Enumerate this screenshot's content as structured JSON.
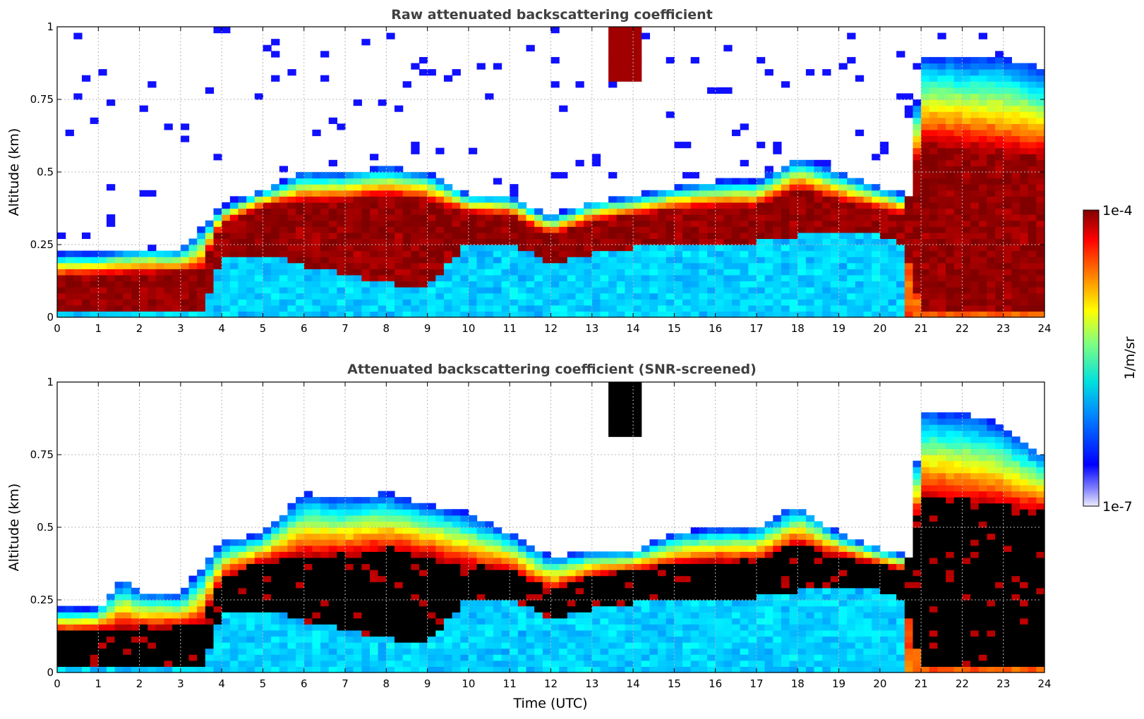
{
  "chart_data": [
    {
      "type": "heatmap",
      "title": "Raw attenuated backscattering coefficient",
      "xlabel": "",
      "ylabel": "Altitude (km)",
      "xlim": [
        0,
        24
      ],
      "ylim": [
        0,
        1
      ],
      "xticks": [
        0,
        1,
        2,
        3,
        4,
        5,
        6,
        7,
        8,
        9,
        10,
        11,
        12,
        13,
        14,
        15,
        16,
        17,
        18,
        19,
        20,
        21,
        22,
        23,
        24
      ],
      "yticks": [
        0,
        0.25,
        0.5,
        0.75,
        1
      ],
      "ytick_labels": [
        "0",
        "0.25",
        "0.5",
        "0.75",
        "1"
      ],
      "layer_top_km": [
        [
          0,
          0.22
        ],
        [
          1,
          0.22
        ],
        [
          2,
          0.24
        ],
        [
          3,
          0.23
        ],
        [
          4,
          0.38
        ],
        [
          5,
          0.44
        ],
        [
          6,
          0.5
        ],
        [
          7,
          0.5
        ],
        [
          8,
          0.52
        ],
        [
          9,
          0.5
        ],
        [
          10,
          0.42
        ],
        [
          11,
          0.42
        ],
        [
          12,
          0.35
        ],
        [
          13,
          0.4
        ],
        [
          14,
          0.42
        ],
        [
          15,
          0.45
        ],
        [
          16,
          0.47
        ],
        [
          17,
          0.47
        ],
        [
          18,
          0.55
        ],
        [
          19,
          0.5
        ],
        [
          20,
          0.45
        ],
        [
          20.7,
          0.42
        ],
        [
          21,
          0.9
        ],
        [
          22,
          0.9
        ],
        [
          23,
          0.9
        ],
        [
          24,
          0.85
        ]
      ],
      "cloud_base_km": [
        [
          0,
          0.02
        ],
        [
          3.5,
          0.02
        ],
        [
          4,
          0.2
        ],
        [
          5,
          0.22
        ],
        [
          6,
          0.18
        ],
        [
          7,
          0.15
        ],
        [
          8,
          0.12
        ],
        [
          9,
          0.1
        ],
        [
          10,
          0.26
        ],
        [
          11,
          0.26
        ],
        [
          12,
          0.18
        ],
        [
          13,
          0.22
        ],
        [
          14,
          0.24
        ],
        [
          15,
          0.26
        ],
        [
          16,
          0.26
        ],
        [
          17,
          0.26
        ],
        [
          18,
          0.28
        ],
        [
          19,
          0.3
        ],
        [
          20,
          0.28
        ],
        [
          20.6,
          0.25
        ],
        [
          21,
          0.03
        ],
        [
          24,
          0.03
        ]
      ],
      "cloud_top_km": [
        [
          0,
          0.14
        ],
        [
          3.5,
          0.16
        ],
        [
          4,
          0.32
        ],
        [
          5,
          0.38
        ],
        [
          6,
          0.4
        ],
        [
          7,
          0.4
        ],
        [
          8,
          0.42
        ],
        [
          9,
          0.4
        ],
        [
          10,
          0.36
        ],
        [
          11,
          0.35
        ],
        [
          12,
          0.28
        ],
        [
          13,
          0.33
        ],
        [
          14,
          0.35
        ],
        [
          15,
          0.37
        ],
        [
          16,
          0.38
        ],
        [
          17,
          0.38
        ],
        [
          18,
          0.44
        ],
        [
          19,
          0.4
        ],
        [
          20,
          0.37
        ],
        [
          20.6,
          0.35
        ],
        [
          21,
          0.6
        ],
        [
          24,
          0.55
        ]
      ],
      "upper_cloud": {
        "x_start": 13.5,
        "x_end": 14.2,
        "y_bottom_km": 0.82,
        "y_top_km": 1.0
      },
      "screened": false
    },
    {
      "type": "heatmap",
      "title": "Attenuated backscattering coefficient (SNR-screened)",
      "xlabel": "Time (UTC)",
      "ylabel": "Altitude (km)",
      "xlim": [
        0,
        24
      ],
      "ylim": [
        0,
        1
      ],
      "xticks": [
        0,
        1,
        2,
        3,
        4,
        5,
        6,
        7,
        8,
        9,
        10,
        11,
        12,
        13,
        14,
        15,
        16,
        17,
        18,
        19,
        20,
        21,
        22,
        23,
        24
      ],
      "yticks": [
        0,
        0.25,
        0.5,
        0.75,
        1
      ],
      "ytick_labels": [
        "0",
        "0.25",
        "0.5",
        "0.75",
        "1"
      ],
      "layer_top_km": [
        [
          0,
          0.22
        ],
        [
          1,
          0.22
        ],
        [
          1.6,
          0.33
        ],
        [
          2,
          0.28
        ],
        [
          3,
          0.27
        ],
        [
          4,
          0.45
        ],
        [
          5,
          0.48
        ],
        [
          6,
          0.62
        ],
        [
          7,
          0.6
        ],
        [
          8,
          0.62
        ],
        [
          9,
          0.58
        ],
        [
          10,
          0.55
        ],
        [
          11,
          0.48
        ],
        [
          12,
          0.4
        ],
        [
          13,
          0.42
        ],
        [
          14,
          0.42
        ],
        [
          15,
          0.48
        ],
        [
          16,
          0.5
        ],
        [
          17,
          0.5
        ],
        [
          18,
          0.58
        ],
        [
          19,
          0.48
        ],
        [
          20,
          0.43
        ],
        [
          20.7,
          0.4
        ],
        [
          21,
          0.9
        ],
        [
          22,
          0.9
        ],
        [
          23,
          0.85
        ],
        [
          24,
          0.75
        ]
      ],
      "cloud_base_km": [
        [
          0,
          0.02
        ],
        [
          3.5,
          0.02
        ],
        [
          4,
          0.2
        ],
        [
          5,
          0.22
        ],
        [
          6,
          0.18
        ],
        [
          7,
          0.15
        ],
        [
          8,
          0.12
        ],
        [
          9,
          0.1
        ],
        [
          10,
          0.26
        ],
        [
          11,
          0.26
        ],
        [
          12,
          0.18
        ],
        [
          13,
          0.22
        ],
        [
          14,
          0.24
        ],
        [
          15,
          0.26
        ],
        [
          16,
          0.26
        ],
        [
          17,
          0.26
        ],
        [
          18,
          0.28
        ],
        [
          19,
          0.3
        ],
        [
          20,
          0.28
        ],
        [
          20.6,
          0.25
        ],
        [
          21,
          0.03
        ],
        [
          24,
          0.03
        ]
      ],
      "cloud_top_km": [
        [
          0,
          0.14
        ],
        [
          3.5,
          0.16
        ],
        [
          4,
          0.32
        ],
        [
          5,
          0.38
        ],
        [
          6,
          0.4
        ],
        [
          7,
          0.4
        ],
        [
          8,
          0.42
        ],
        [
          9,
          0.4
        ],
        [
          10,
          0.36
        ],
        [
          11,
          0.35
        ],
        [
          12,
          0.28
        ],
        [
          13,
          0.33
        ],
        [
          14,
          0.35
        ],
        [
          15,
          0.37
        ],
        [
          16,
          0.38
        ],
        [
          17,
          0.38
        ],
        [
          18,
          0.44
        ],
        [
          19,
          0.4
        ],
        [
          20,
          0.37
        ],
        [
          20.6,
          0.35
        ],
        [
          21,
          0.6
        ],
        [
          24,
          0.55
        ]
      ],
      "upper_cloud": {
        "x_start": 13.5,
        "x_end": 14.2,
        "y_bottom_km": 0.82,
        "y_top_km": 1.0
      },
      "screened": true
    }
  ],
  "colorbar": {
    "min_label": "1e-7",
    "max_label": "1e-4",
    "label": "1/m/sr",
    "min_value": 1e-07,
    "max_value": 0.0001,
    "scale": "log",
    "colormap": "jet",
    "saturation_color_screened": "#000000"
  }
}
